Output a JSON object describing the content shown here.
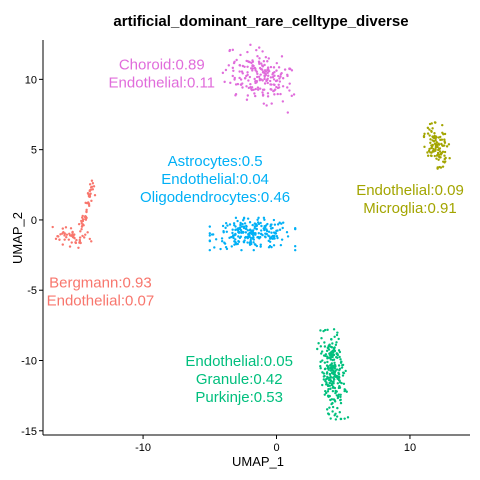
{
  "chart_data": {
    "type": "scatter",
    "title": "artificial_dominant_rare_celltype_diverse",
    "xlabel": "UMAP_1",
    "ylabel": "UMAP_2",
    "xlim": [
      -17.5,
      14.5
    ],
    "ylim": [
      -15.3,
      12.8
    ],
    "xticks": [
      -10,
      0,
      10
    ],
    "yticks": [
      -15,
      -10,
      -5,
      0,
      5,
      10
    ],
    "grid": false,
    "legend": "none",
    "clusters": [
      {
        "color": "#E06CDB",
        "center": [
          -1.2,
          10.2
        ],
        "shape": "blob",
        "rx": 2.8,
        "ry": 1.9,
        "n": 200,
        "tilt": -0.35,
        "annotation": [
          "Choroid:0.89",
          "Endothelial:0.11"
        ],
        "label_pos": [
          -8.6,
          10.4
        ]
      },
      {
        "color": "#A3A500",
        "center": [
          12.0,
          5.3
        ],
        "shape": "blob",
        "rx": 0.9,
        "ry": 1.6,
        "n": 110,
        "tilt": 0.3,
        "annotation": [
          "Endothelial:0.09",
          "Microglia:0.91"
        ],
        "label_pos": [
          10.0,
          1.5
        ]
      },
      {
        "color": "#00B0F6",
        "center": [
          -1.8,
          -1.0
        ],
        "shape": "blob",
        "rx": 3.2,
        "ry": 1.15,
        "n": 230,
        "tilt": 0.0,
        "annotation": [
          "Astrocytes:0.5",
          "Endothelial:0.04",
          "Oligodendrocytes:0.46"
        ],
        "label_pos": [
          -4.6,
          2.9
        ]
      },
      {
        "color": "#F8766D",
        "center": [
          -15.3,
          -1.0
        ],
        "shape": "arc",
        "n": 95,
        "annotation": [
          "Bergmann:0.93",
          "Endothelial:0.07"
        ],
        "label_pos": [
          -13.2,
          -5.1
        ]
      },
      {
        "color": "#00BF7D",
        "center": [
          4.2,
          -11.0
        ],
        "shape": "blob",
        "rx": 1.0,
        "ry": 3.2,
        "n": 240,
        "tilt": 0.08,
        "annotation": [
          "Endothelial:0.05",
          "Granule:0.42",
          "Purkinje:0.53"
        ],
        "label_pos": [
          -2.8,
          -11.3
        ]
      }
    ]
  }
}
